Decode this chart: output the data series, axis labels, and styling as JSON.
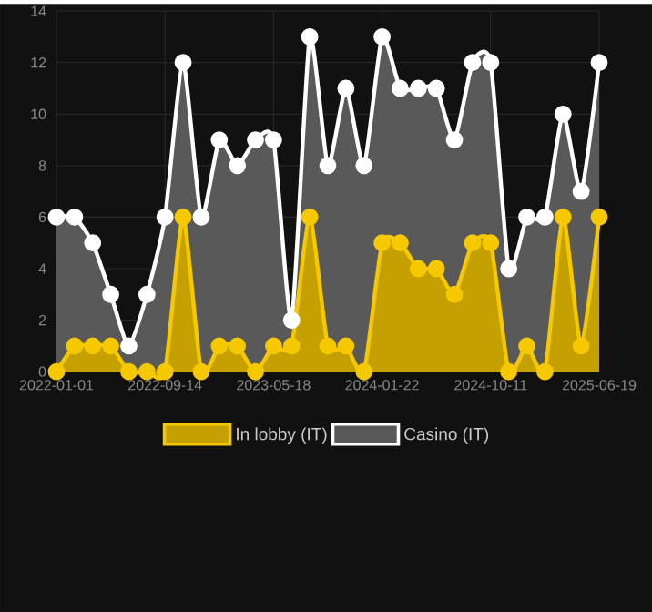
{
  "chart_data": {
    "type": "area",
    "categories": [
      "2022-01-01",
      null,
      null,
      null,
      null,
      null,
      "2022-09-14",
      null,
      null,
      null,
      null,
      null,
      "2023-05-18",
      null,
      null,
      null,
      null,
      null,
      "2024-01-22",
      null,
      null,
      null,
      null,
      null,
      "2024-10-11",
      null,
      null,
      null,
      null,
      null,
      "2025-06-19"
    ],
    "series": [
      {
        "name": "In lobby (IT)",
        "color": "#f5c800",
        "values": [
          0,
          1,
          1,
          1,
          0,
          0,
          0,
          6,
          0,
          1,
          1,
          0,
          1,
          1,
          6,
          1,
          1,
          0,
          5,
          5,
          4,
          4,
          3,
          5,
          5,
          0,
          1,
          0,
          6,
          1,
          6
        ]
      },
      {
        "name": "Casino (IT)",
        "color": "#ffffff",
        "values": [
          6,
          6,
          5,
          3,
          1,
          3,
          6,
          12,
          6,
          9,
          8,
          9,
          9,
          2,
          13,
          8,
          11,
          8,
          13,
          11,
          11,
          11,
          9,
          12,
          12,
          4,
          6,
          6,
          10,
          7,
          12
        ]
      }
    ],
    "ylim": [
      0,
      14
    ],
    "yticks": [
      0,
      2,
      4,
      6,
      8,
      10,
      12,
      14
    ],
    "grid": true,
    "legend": "bottom",
    "marker": "circle",
    "line_style": "solid"
  }
}
